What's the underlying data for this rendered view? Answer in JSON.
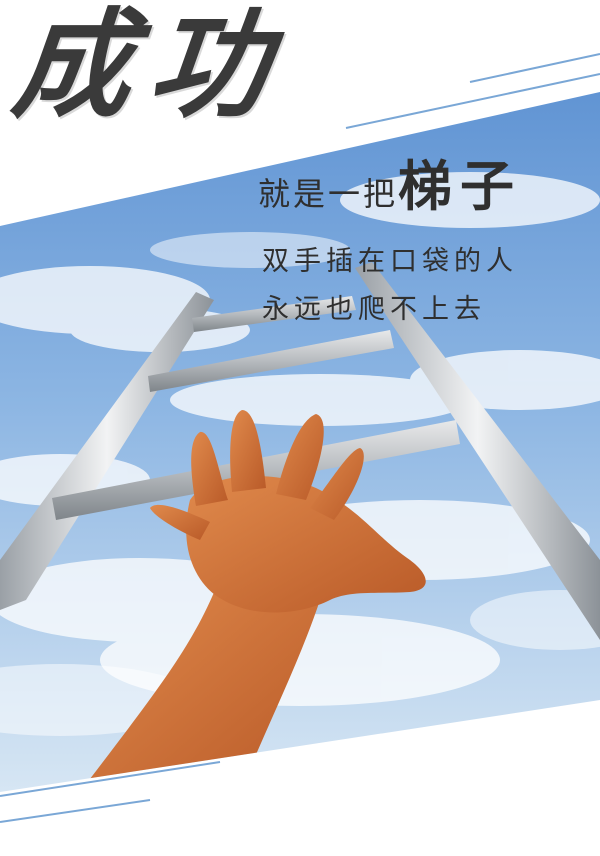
{
  "title": "成功",
  "subtitle": {
    "lead": "就是一把",
    "highlight": "梯子"
  },
  "lines": [
    "双手插在口袋的人",
    "永远也爬不上去"
  ],
  "colors": {
    "text": "#333333",
    "sky_top": "#6fa0d8",
    "sky_bottom": "#cfe2f3",
    "accent_line": "#7aa7d6",
    "ladder": "#c8ccd0",
    "skin": "#d4783f"
  },
  "icons": [
    "ladder-illustration",
    "reaching-hand-illustration",
    "sky-clouds-background"
  ]
}
